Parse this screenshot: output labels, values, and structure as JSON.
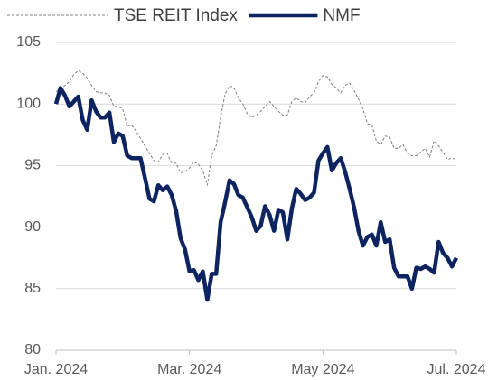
{
  "chart_data": {
    "type": "line",
    "categories": [
      "Jan. 2024",
      null,
      null,
      null,
      null,
      null,
      null,
      null,
      null,
      null,
      null,
      null,
      null,
      null,
      null,
      null,
      null,
      null,
      null,
      null,
      null,
      null,
      null,
      null,
      null,
      null,
      null,
      null,
      null,
      null,
      "Mar. 2024",
      null,
      null,
      null,
      null,
      null,
      null,
      null,
      null,
      null,
      null,
      null,
      null,
      null,
      null,
      null,
      null,
      null,
      null,
      null,
      null,
      null,
      null,
      null,
      null,
      null,
      null,
      null,
      null,
      null,
      "May 2024",
      null,
      null,
      null,
      null,
      null,
      null,
      null,
      null,
      null,
      null,
      null,
      null,
      null,
      null,
      null,
      null,
      null,
      null,
      null,
      null,
      null,
      null,
      null,
      null,
      null,
      null,
      null,
      null,
      null,
      "Jul. 2024"
    ],
    "series": [
      {
        "name": "TSE REIT Index",
        "color": "#7f7f7f",
        "linestyle": "dashed",
        "values": [
          101,
          101.2,
          101.5,
          101.8,
          102.4,
          102.7,
          102.5,
          102.1,
          101.5,
          101,
          100.9,
          100.9,
          100.7,
          99.8,
          99.8,
          99.6,
          98.2,
          98.3,
          97.8,
          97.2,
          96.6,
          96,
          95.4,
          95.3,
          95.9,
          96,
          95.2,
          95.2,
          94.4,
          94.5,
          94.8,
          95.3,
          95.1,
          94.6,
          93.4,
          95.8,
          96.6,
          98.9,
          100.8,
          101.5,
          101.3,
          100.5,
          100,
          99.2,
          98.9,
          99.1,
          99.4,
          99.8,
          100.2,
          99.8,
          99.4,
          99.1,
          99.1,
          100.2,
          100.5,
          100.2,
          100.1,
          100.6,
          100.9,
          101.8,
          102.3,
          102.2,
          101.6,
          101.3,
          100.9,
          101.5,
          101.7,
          101.1,
          100.4,
          99.6,
          98.4,
          98.3,
          97,
          96.7,
          97.4,
          97.3,
          96.4,
          96.4,
          96.7,
          96,
          95.8,
          95.8,
          96.1,
          96.4,
          95.7,
          97,
          96.6,
          96.1,
          95.5,
          95.6,
          95.5
        ]
      },
      {
        "name": "NMF",
        "color": "#0d2461",
        "linestyle": "solid",
        "values": [
          100,
          101.3,
          100.7,
          99.8,
          100.2,
          100.6,
          98.7,
          97.9,
          100.3,
          99.4,
          98.9,
          98.9,
          99.3,
          96.9,
          97.6,
          97.4,
          95.8,
          95.6,
          95.6,
          95.6,
          94,
          92.3,
          92.1,
          93.4,
          93,
          93.3,
          92.6,
          91.3,
          89.1,
          88.2,
          86.4,
          86.5,
          85.7,
          86.4,
          84.1,
          86.2,
          86.2,
          90.4,
          92,
          93.8,
          93.5,
          92.6,
          92.4,
          91.6,
          90.8,
          89.7,
          90.1,
          91.7,
          91,
          89.7,
          91.4,
          91.2,
          89,
          91.5,
          93.1,
          92.7,
          92.2,
          92.4,
          92.8,
          95.4,
          96,
          96.5,
          94.6,
          95.2,
          95.6,
          94.5,
          93.1,
          91.6,
          89.7,
          88.5,
          89.2,
          89.4,
          88.5,
          90.4,
          88.8,
          89,
          86.7,
          86,
          86,
          86,
          85,
          86.7,
          86.6,
          86.8,
          86.6,
          86.3,
          88.8,
          87.9,
          87.5,
          86.8,
          87.5
        ]
      }
    ],
    "ylim": [
      80,
      105
    ],
    "yticks": [
      80,
      85,
      90,
      95,
      100,
      105
    ],
    "grid": true,
    "legend": "top"
  }
}
